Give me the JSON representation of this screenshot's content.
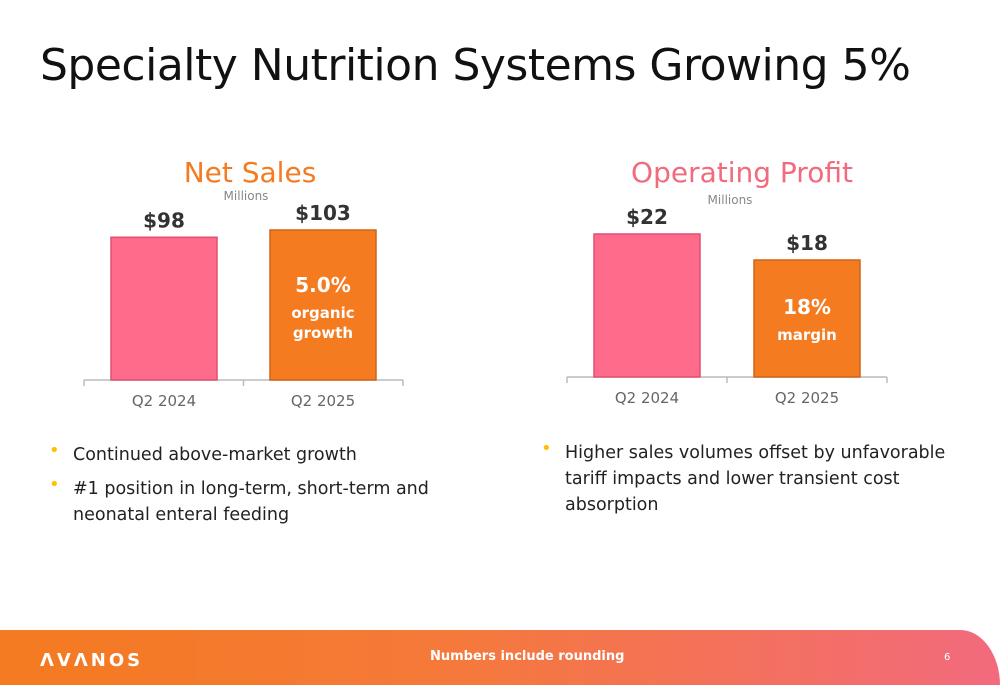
{
  "slide": {
    "title": "Specialty Nutrition Systems Growing 5%",
    "page_number": "6"
  },
  "chart_data": [
    {
      "type": "bar",
      "title": "Net Sales",
      "subtitle": "Millions",
      "categories": [
        "Q2 2024",
        "Q2 2025"
      ],
      "values": [
        98,
        103
      ],
      "value_labels": [
        "$98",
        "$103"
      ],
      "bar_colors": [
        "#ff6b8a",
        "#f47b20"
      ],
      "annotation": {
        "bar": 1,
        "lines": [
          "5.0%",
          "organic",
          "growth"
        ]
      }
    },
    {
      "type": "bar",
      "title": "Operating Profit",
      "subtitle": "Millions",
      "categories": [
        "Q2 2024",
        "Q2 2025"
      ],
      "values": [
        22,
        18
      ],
      "value_labels": [
        "$22",
        "$18"
      ],
      "bar_colors": [
        "#ff6b8a",
        "#f47b20"
      ],
      "annotation": {
        "bar": 1,
        "lines": [
          "18%",
          "margin"
        ]
      }
    }
  ],
  "bullets_left": [
    "Continued above-market growth",
    "#1 position in long-term, short-term and neonatal enteral feeding"
  ],
  "bullets_right": [
    "Higher sales volumes offset by unfavorable tariff impacts and lower transient cost absorption"
  ],
  "footer": {
    "logo": "ΛVΛNOS",
    "note": "Numbers include rounding"
  },
  "colors": {
    "net_sales_title": "#f47b20",
    "operating_profit_title": "#f26a7d",
    "bullet": "#ffc000",
    "axis_labels": "#666666"
  }
}
